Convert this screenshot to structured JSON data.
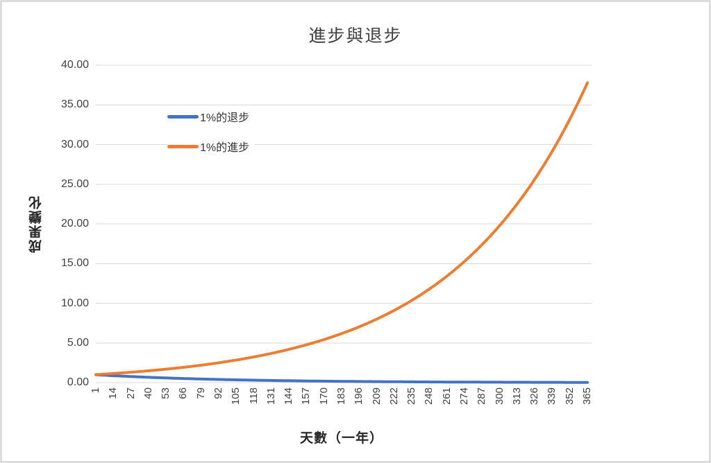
{
  "window": {
    "background": "#ffffff",
    "border_color": "#dcdcdc"
  },
  "chart_data": {
    "type": "line",
    "title": "進步與退步",
    "xlabel": "天數（一年）",
    "ylabel": "成果變化",
    "xlim": [
      1,
      365
    ],
    "ylim": [
      0,
      40
    ],
    "grid": true,
    "gridline_color": "#d9d9d9",
    "legend_position": "inside-upper-left",
    "x_ticks": [
      1,
      14,
      27,
      40,
      53,
      66,
      79,
      92,
      105,
      118,
      131,
      144,
      157,
      170,
      183,
      196,
      209,
      222,
      235,
      248,
      261,
      274,
      287,
      300,
      313,
      326,
      339,
      352,
      365
    ],
    "y_ticks": [
      0,
      5,
      10,
      15,
      20,
      25,
      30,
      35,
      40
    ],
    "y_tick_labels": [
      "0.00",
      "5.00",
      "10.00",
      "15.00",
      "20.00",
      "25.00",
      "30.00",
      "35.00",
      "40.00"
    ],
    "series": [
      {
        "name": "1%的退步",
        "color": "#4472C4",
        "base": 0.99,
        "formula": "y = 0.99^day",
        "values_at_ticks": [
          0.99,
          0.869,
          0.762,
          0.669,
          0.587,
          0.515,
          0.452,
          0.397,
          0.348,
          0.306,
          0.268,
          0.235,
          0.207,
          0.181,
          0.159,
          0.14,
          0.122,
          0.107,
          0.094,
          0.083,
          0.073,
          0.064,
          0.056,
          0.049,
          0.043,
          0.038,
          0.033,
          0.029,
          0.026
        ]
      },
      {
        "name": "1%的進步",
        "color": "#ED7D31",
        "base": 1.01,
        "formula": "y = 1.01^day",
        "values_at_ticks": [
          1.01,
          1.149,
          1.308,
          1.489,
          1.694,
          1.928,
          2.194,
          2.497,
          2.842,
          3.234,
          3.68,
          4.188,
          4.766,
          5.424,
          6.172,
          7.025,
          7.994,
          9.097,
          10.353,
          11.782,
          13.409,
          15.26,
          17.366,
          19.788,
          22.518,
          25.627,
          29.165,
          33.19,
          37.783
        ]
      }
    ]
  }
}
